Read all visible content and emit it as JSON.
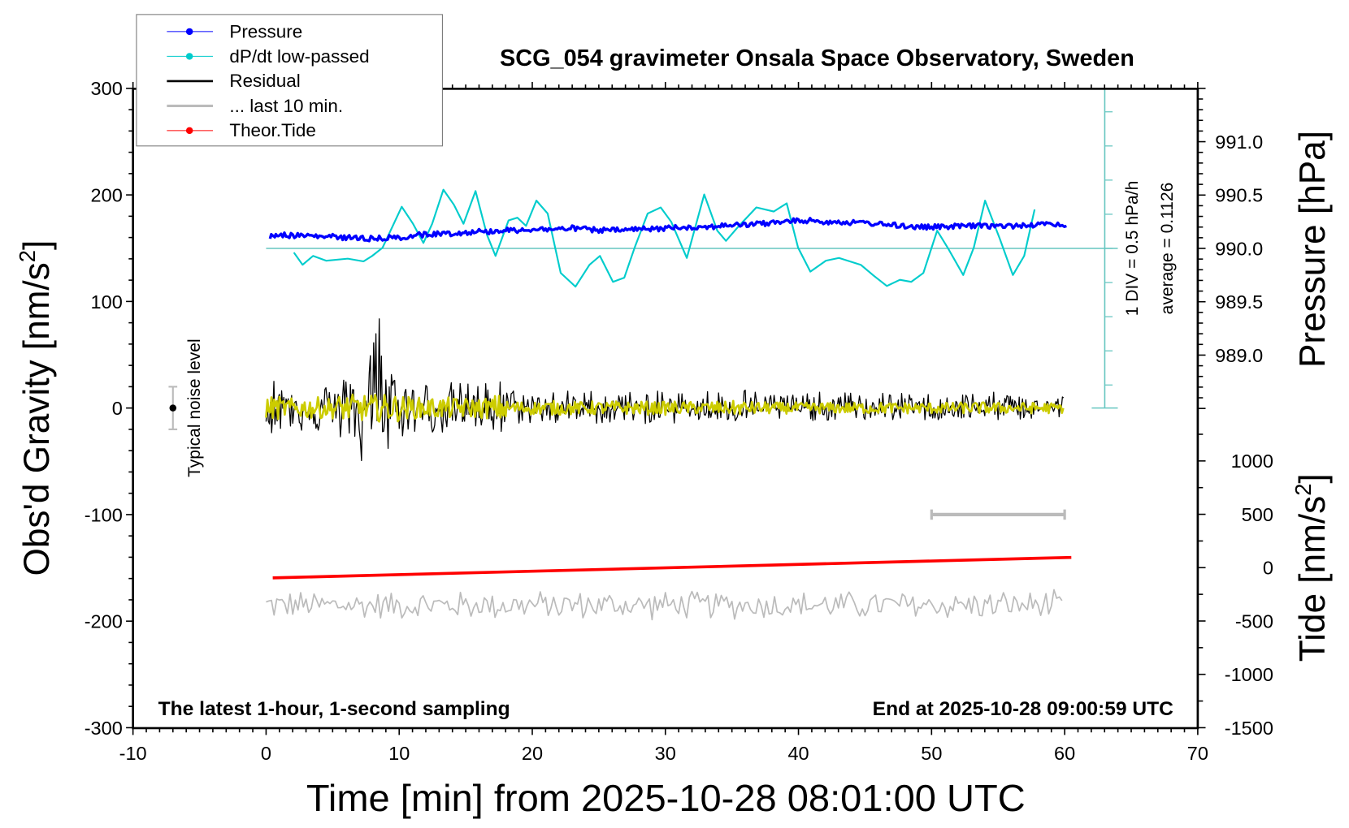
{
  "chart_data": {
    "type": "line",
    "title": "SCG_054 gravimeter Onsala Space Observatory, Sweden",
    "xlabel": "Time [min] from 2025-10-28 08:01:00 UTC",
    "ylabel_left": "Obs'd Gravity [nm/s",
    "ylabel_left_sup": "2",
    "ylabel_left_end": "]",
    "ylabel_right_top": "Pressure [hPa]",
    "ylabel_right_bottom": "Tide [nm/s",
    "ylabel_right_bottom_sup": "2",
    "ylabel_right_bottom_end": "]",
    "xlim": [
      -10,
      70
    ],
    "ylim": [
      -300,
      300
    ],
    "pressure_lim": [
      988.5,
      991.5
    ],
    "tide_lim": [
      -1500,
      1500
    ],
    "x_ticks": [
      "-10",
      "0",
      "10",
      "20",
      "30",
      "40",
      "50",
      "60",
      "70"
    ],
    "y_ticks": [
      "-300",
      "-200",
      "-100",
      "0",
      "100",
      "200",
      "300"
    ],
    "pressure_ticks": [
      "989.0",
      "989.5",
      "990.0",
      "990.5",
      "991.0"
    ],
    "tide_ticks": [
      "-1500",
      "-1000",
      "-500",
      "0",
      "500",
      "1000"
    ],
    "legend": {
      "placement": "top-left",
      "entries": [
        {
          "label": "Pressure",
          "color": "#0000ff",
          "marker": "dot"
        },
        {
          "label": "dP/dt low-passed",
          "color": "#00cccc",
          "marker": "dot"
        },
        {
          "label": "Residual",
          "color": "#000000",
          "marker": "line"
        },
        {
          "label": "... last 10 min.",
          "color": "#bbbbbb",
          "marker": "line"
        },
        {
          "label": "Theor.Tide",
          "color": "#ff0000",
          "marker": "dot"
        }
      ]
    },
    "annotations": {
      "noise_label": "Typical noise level",
      "noise_bar": {
        "x": -7,
        "center": 0,
        "halfwidth": 20
      },
      "dpdt_scale": "1 DIV = 0.5 hPa/h",
      "dpdt_average": "average = 0.1126",
      "bottom_left": "The latest 1-hour, 1-second sampling",
      "bottom_right": "End at 2025-10-28 09:00:59 UTC",
      "last10_bar": {
        "x_start": 50,
        "x_end": 60,
        "y": -100
      }
    },
    "series": {
      "pressure_hPa": {
        "x": [
          0.3,
          1,
          2,
          3,
          4,
          5,
          6,
          7,
          8,
          9,
          10,
          11,
          12,
          13,
          14,
          15,
          16,
          17,
          18,
          19,
          20,
          21,
          22,
          23,
          24,
          25,
          26,
          27,
          28,
          29,
          30,
          31,
          32,
          33,
          34,
          35,
          36,
          37,
          38,
          39,
          40,
          41,
          42,
          43,
          44,
          45,
          46,
          47,
          48,
          49,
          50,
          51,
          52,
          53,
          54,
          55,
          56,
          57,
          58,
          59,
          60.3
        ],
        "y": [
          990.11,
          990.13,
          990.12,
          990.12,
          990.11,
          990.11,
          990.1,
          990.1,
          990.09,
          990.1,
          990.1,
          990.12,
          990.13,
          990.14,
          990.14,
          990.15,
          990.16,
          990.16,
          990.17,
          990.17,
          990.18,
          990.18,
          990.18,
          990.19,
          990.18,
          990.17,
          990.17,
          990.17,
          990.18,
          990.18,
          990.19,
          990.2,
          990.2,
          990.2,
          990.21,
          990.22,
          990.22,
          990.23,
          990.24,
          990.25,
          990.26,
          990.26,
          990.25,
          990.25,
          990.24,
          990.24,
          990.23,
          990.22,
          990.21,
          990.2,
          990.2,
          990.2,
          990.21,
          990.21,
          990.21,
          990.21,
          990.21,
          990.22,
          990.22,
          990.23,
          990.22
        ]
      },
      "dpdt_hPa_per_h": {
        "x": [
          2.09,
          2.74,
          3.53,
          4.51,
          6.14,
          7.32,
          7.97,
          8.75,
          10.19,
          11.04,
          11.82,
          12.48,
          13.32,
          14.11,
          14.83,
          15.74,
          16.59,
          17.24,
          18.22,
          18.88,
          19.53,
          20.31,
          21.16,
          22.14,
          23.25,
          24.3,
          25.08,
          26.06,
          26.91,
          27.69,
          28.67,
          29.65,
          30.44,
          31.61,
          32.92,
          33.9,
          34.55,
          35.53,
          36.84,
          38.14,
          39.12,
          39.97,
          40.89,
          42.06,
          43.04,
          44.68,
          45.66,
          46.64,
          47.62,
          48.47,
          49.38,
          50.42,
          51.21,
          52.38,
          53.17,
          54.02,
          55.13,
          56.11,
          56.96,
          57.74
        ],
        "y": [
          -0.06,
          -0.24,
          -0.11,
          -0.18,
          -0.15,
          -0.19,
          -0.11,
          0.01,
          0.61,
          0.36,
          0.08,
          0.36,
          0.86,
          0.64,
          0.36,
          0.84,
          0.2,
          -0.11,
          0.41,
          0.45,
          0.33,
          0.7,
          0.51,
          -0.36,
          -0.56,
          -0.24,
          -0.11,
          -0.49,
          -0.43,
          0.01,
          0.51,
          0.6,
          0.39,
          -0.14,
          0.79,
          0.26,
          0.11,
          0.33,
          0.6,
          0.54,
          0.66,
          0.01,
          -0.34,
          -0.18,
          -0.14,
          -0.24,
          -0.4,
          -0.55,
          -0.46,
          -0.49,
          -0.36,
          0.26,
          0.01,
          -0.39,
          0.01,
          0.7,
          0.14,
          -0.39,
          -0.11,
          0.57
        ]
      },
      "residual_envelope_per_min": {
        "min": [
          -25,
          -22,
          -22,
          -25,
          -24,
          -30,
          -35,
          -60,
          -95,
          -45,
          -28,
          -25,
          -24,
          -25,
          -24,
          -22,
          -25,
          -30,
          -16,
          -15,
          -15,
          -16,
          -15,
          -14,
          -15,
          -15,
          -16,
          -14,
          -15,
          -14,
          -15,
          -14,
          -13,
          -14,
          -15,
          -14,
          -13,
          -13,
          -12,
          -12,
          -12,
          -12,
          -12,
          -12,
          -12,
          -12,
          -12,
          -12,
          -12,
          -12,
          -12,
          -11,
          -12,
          -12,
          -12,
          -12,
          -11,
          -12,
          -12,
          -11
        ],
        "max": [
          30,
          24,
          25,
          26,
          25,
          30,
          40,
          80,
          100,
          50,
          28,
          25,
          26,
          25,
          24,
          26,
          25,
          32,
          18,
          17,
          16,
          18,
          17,
          16,
          18,
          16,
          17,
          16,
          17,
          16,
          18,
          16,
          15,
          18,
          16,
          20,
          17,
          16,
          15,
          15,
          14,
          15,
          14,
          15,
          14,
          16,
          15,
          14,
          15,
          14,
          15,
          15,
          15,
          16,
          15,
          14,
          15,
          14,
          14,
          13
        ]
      },
      "yellow_smoothed_amplitude": 8,
      "last10_offset_trace": {
        "center": -185,
        "halfwidth": 15
      },
      "theor_tide_nm_s2": {
        "x": [
          0.5,
          60.5
        ],
        "y": [
          -96,
          96
        ]
      }
    },
    "colors": {
      "pressure": "#0000ff",
      "dpdt": "#00cccc",
      "dpdt_axis": "#66c6c0",
      "residual": "#000000",
      "smoothed": "#cccc00",
      "last10": "#bbbbbb",
      "tide": "#ff0000"
    },
    "grid": false
  }
}
